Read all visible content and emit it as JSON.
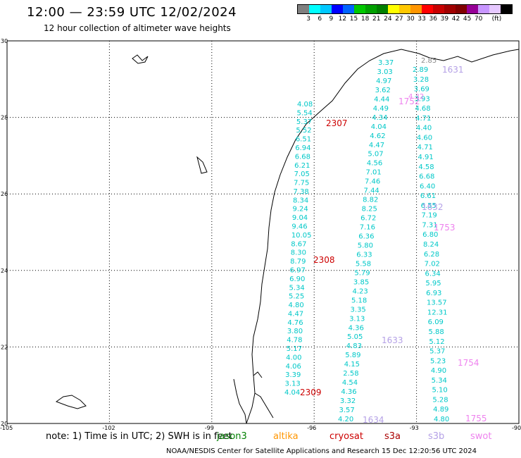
{
  "header": {
    "title": "12:00 — 23:59 UTC 12/02/2024",
    "subtitle": "12 hour collection of altimeter wave heights"
  },
  "legend": {
    "colors": [
      "#808080",
      "#00ffff",
      "#00c8ff",
      "#0000ff",
      "#0064ff",
      "#00c800",
      "#00a000",
      "#008000",
      "#ffff00",
      "#ffc800",
      "#ff9600",
      "#ff0000",
      "#c80000",
      "#a00000",
      "#800000",
      "#960096",
      "#c896ff",
      "#e6c8ff",
      "#000000"
    ],
    "labels": [
      "3",
      "6",
      "9",
      "12",
      "15",
      "18",
      "21",
      "24",
      "27",
      "30",
      "33",
      "36",
      "39",
      "42",
      "45",
      "70",
      "(ft)"
    ]
  },
  "axes": {
    "lat_labels": [
      "30",
      "28",
      "26",
      "24",
      "22",
      "20"
    ],
    "lon_labels": [
      "-105",
      "-102",
      "-99",
      "-96",
      "-93",
      "-90"
    ]
  },
  "tracks": [
    {
      "name": "jason3",
      "color": "#00c8c8",
      "values": [
        "4.08",
        "5.54",
        "5.37",
        "5.52",
        "6.51",
        "6.94",
        "6.68",
        "6.21",
        "7.05",
        "7.75",
        "7.38",
        "8.34",
        "9.24",
        "9.04",
        "9.46",
        "10.05",
        "8.67",
        "8.30",
        "8.79",
        "6.97",
        "6.90",
        "5.34",
        "5.25",
        "4.80",
        "4.47",
        "4.76",
        "3.80",
        "4.78",
        "5.17",
        "4.00",
        "4.06",
        "3.39",
        "3.13",
        "4.04"
      ]
    },
    {
      "name": "altika-gulf",
      "color": "#00c8c8",
      "values": [
        "3.37",
        "3.03",
        "4.97",
        "3.62",
        "4.44",
        "4.49",
        "4.34",
        "4.04",
        "4.62",
        "4.47",
        "5.07",
        "4.56",
        "7.01",
        "7.46",
        "7.44",
        "8.82",
        "8.25",
        "6.72",
        "7.16",
        "6.36",
        "5.80",
        "6.33",
        "5.58",
        "5.79",
        "3.85",
        "4.23",
        "5.18",
        "3.35",
        "3.13",
        "4.36",
        "5.05",
        "4.83",
        "5.89",
        "4.15",
        "2.58",
        "4.54",
        "4.36",
        "3.32",
        "3.57",
        "4.20"
      ]
    },
    {
      "name": "s3a-track",
      "color": "#00c8c8",
      "values": [
        "2.89",
        "3.28",
        "3.69",
        "3.93",
        "4.68",
        "4.71",
        "4.40",
        "4.60",
        "4.71",
        "4.91",
        "4.58",
        "6.68",
        "6.40",
        "6.61",
        "6.55",
        "7.19",
        "7.31",
        "6.80",
        "8.24",
        "6.28",
        "7.02",
        "6.34",
        "5.95",
        "6.93",
        "13.57",
        "12.31",
        "6.09",
        "5.88",
        "5.12",
        "5.37",
        "5.23",
        "4.90",
        "5.34",
        "5.10",
        "5.28",
        "4.89",
        "4.80"
      ]
    }
  ],
  "time_labels": [
    {
      "text": "2307",
      "color": "#cc0000"
    },
    {
      "text": "2308",
      "color": "#cc0000"
    },
    {
      "text": "2309",
      "color": "#cc0000"
    },
    {
      "text": "1631",
      "color": "#b4a0e6"
    },
    {
      "text": "1632",
      "color": "#b4a0e6"
    },
    {
      "text": "1633",
      "color": "#b4a0e6"
    },
    {
      "text": "1634",
      "color": "#b4a0e6"
    },
    {
      "text": "1752",
      "color": "#ee82ee"
    },
    {
      "text": "1753",
      "color": "#ee82ee"
    },
    {
      "text": "1754",
      "color": "#ee82ee"
    },
    {
      "text": "1755",
      "color": "#ee82ee"
    },
    {
      "text": "2.85",
      "color": "#888888"
    },
    {
      "text": "4.32",
      "color": "#ee82ee"
    }
  ],
  "note": {
    "text": "note: 1) Time is in UTC; 2) SWH is in feet",
    "missions": [
      {
        "name": "jason3",
        "color": "#008000"
      },
      {
        "name": "altika",
        "color": "#ff9600"
      },
      {
        "name": "cryosat",
        "color": "#cc0000"
      },
      {
        "name": "s3a",
        "color": "#aa0000"
      },
      {
        "name": "s3b",
        "color": "#b4a0e6"
      },
      {
        "name": "swot",
        "color": "#ee82ee"
      }
    ]
  },
  "footer": "NOAA/NESDIS Center for Satellite Applications and Research   15 Dec 12:20:56 UTC 2024"
}
